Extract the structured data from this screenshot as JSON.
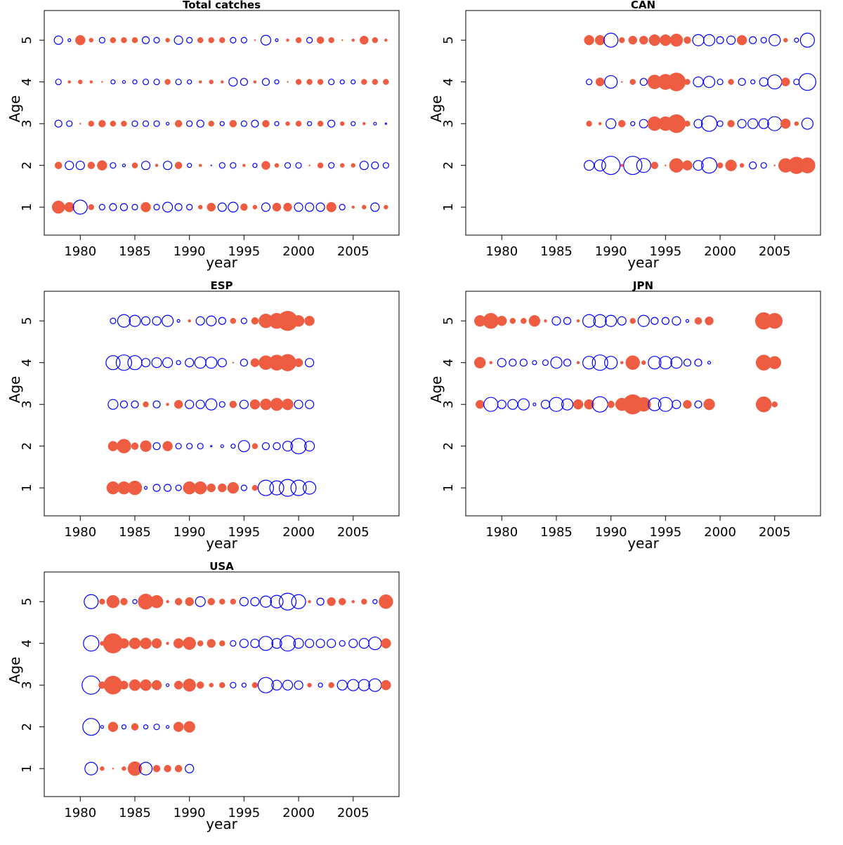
{
  "chart_data": [
    {
      "type": "bubble",
      "title": "Total catches",
      "x_label": "year",
      "y_label": "Age",
      "xlim": [
        1976.7,
        2009.2
      ],
      "ylim": [
        0.33,
        5.71
      ],
      "xticks": [
        1980,
        1985,
        1990,
        1995,
        2000,
        2005
      ],
      "yticks": [
        1,
        2,
        3,
        4,
        5
      ],
      "positive_color": "#ee5c42",
      "negative_color": "#0000ff",
      "x": [
        1978,
        1979,
        1980,
        1981,
        1982,
        1983,
        1984,
        1985,
        1986,
        1987,
        1988,
        1989,
        1990,
        1991,
        1992,
        1993,
        1994,
        1995,
        1996,
        1997,
        1998,
        1999,
        2000,
        2001,
        2002,
        2003,
        2004,
        2005,
        2006,
        2007,
        2008
      ],
      "y": [
        1,
        2,
        3,
        4,
        5
      ],
      "values": [
        [
          1.8,
          1.4,
          -2.0,
          0.8,
          -0.8,
          -1.0,
          -1.0,
          -0.8,
          1.4,
          -0.8,
          -1.4,
          -1.0,
          -0.8,
          0.6,
          1.2,
          -1.2,
          -1.4,
          1.0,
          0.6,
          -1.2,
          1.2,
          1.2,
          -1.2,
          -1.2,
          -1.2,
          1.4,
          -0.8,
          0.4,
          0.6,
          -1.2,
          0.6
        ],
        [
          1.0,
          -1.2,
          -1.2,
          1.0,
          1.4,
          -0.8,
          -0.4,
          0.8,
          -1.2,
          0.4,
          -1.2,
          1.0,
          -0.6,
          0.4,
          -0.1,
          -0.8,
          -0.8,
          0.4,
          -0.6,
          1.2,
          0.6,
          -0.8,
          -0.8,
          0.2,
          0.8,
          -0.8,
          0.6,
          0.6,
          -1.2,
          -1.0,
          -0.8
        ],
        [
          -1.0,
          -0.8,
          0.2,
          0.8,
          1.0,
          0.8,
          0.8,
          -0.8,
          -0.8,
          -0.8,
          -0.4,
          1.0,
          -0.8,
          -1.0,
          0.8,
          -0.6,
          1.0,
          -0.8,
          -1.0,
          1.0,
          -0.6,
          0.6,
          0.8,
          -0.6,
          0.8,
          -1.0,
          0.6,
          -0.6,
          0.4,
          -0.4,
          -0.2
        ],
        [
          -0.8,
          0.4,
          0.6,
          0.4,
          0.2,
          -0.6,
          -0.4,
          -0.6,
          -0.8,
          -0.8,
          0.8,
          -0.8,
          -0.6,
          0.4,
          0.6,
          0.4,
          -1.2,
          -1.0,
          0.4,
          -1.0,
          -0.6,
          0.2,
          0.8,
          0.8,
          0.8,
          -0.8,
          -0.6,
          -0.6,
          0.8,
          0.8,
          0.8
        ],
        [
          -1.2,
          -0.4,
          1.4,
          0.6,
          -0.8,
          0.8,
          0.8,
          0.8,
          -1.0,
          -0.8,
          0.6,
          -1.2,
          -0.8,
          0.8,
          0.8,
          0.8,
          -0.8,
          -0.8,
          0.2,
          -1.4,
          -0.4,
          0.4,
          0.8,
          -0.8,
          1.0,
          0.8,
          0.2,
          0.4,
          1.2,
          0.8,
          0.4
        ]
      ]
    },
    {
      "type": "bubble",
      "title": "CAN",
      "x_label": "year",
      "y_label": "Age",
      "xlim": [
        1976.7,
        2009.2
      ],
      "ylim": [
        0.33,
        5.71
      ],
      "xticks": [
        1980,
        1985,
        1990,
        1995,
        2000,
        2005
      ],
      "yticks": [
        1,
        2,
        3,
        4,
        5
      ],
      "positive_color": "#ee5c42",
      "negative_color": "#0000ff",
      "x": [
        1988,
        1989,
        1990,
        1991,
        1992,
        1993,
        1994,
        1995,
        1996,
        1997,
        1998,
        1999,
        2000,
        2001,
        2002,
        2003,
        2004,
        2005,
        2006,
        2007,
        2008
      ],
      "y": [
        2,
        3,
        4,
        5
      ],
      "values": [
        [
          -1.4,
          -1.6,
          -2.6,
          0.4,
          -2.6,
          -2.0,
          1.0,
          0.2,
          2.0,
          1.4,
          -1.4,
          -2.2,
          0.8,
          1.6,
          0.6,
          -1.0,
          -0.8,
          0.2,
          2.0,
          2.4,
          2.2
        ],
        [
          0.8,
          0.4,
          -1.4,
          1.0,
          -0.6,
          -1.2,
          2.0,
          2.0,
          2.6,
          0.8,
          -1.2,
          -2.2,
          -0.8,
          1.0,
          -1.2,
          -1.4,
          -1.4,
          -2.0,
          1.4,
          0.6,
          -1.6
        ],
        [
          -0.8,
          1.2,
          -1.8,
          0.2,
          0.8,
          -1.0,
          2.0,
          2.2,
          2.6,
          0.8,
          -1.4,
          -1.6,
          -0.8,
          0.8,
          -1.0,
          -0.6,
          -1.2,
          -2.0,
          1.2,
          -0.8,
          -2.4
        ],
        [
          1.4,
          1.4,
          -2.0,
          0.8,
          1.2,
          1.2,
          1.6,
          1.6,
          1.8,
          1.0,
          -1.6,
          -1.6,
          -1.0,
          -1.2,
          1.4,
          -1.0,
          -0.8,
          -1.6,
          0.6,
          -0.6,
          -2.0
        ]
      ]
    },
    {
      "type": "bubble",
      "title": "ESP",
      "x_label": "year",
      "y_label": "Age",
      "xlim": [
        1976.7,
        2009.2
      ],
      "ylim": [
        0.33,
        5.71
      ],
      "xticks": [
        1980,
        1985,
        1990,
        1995,
        2000,
        2005
      ],
      "yticks": [
        1,
        2,
        3,
        4,
        5
      ],
      "positive_color": "#ee5c42",
      "negative_color": "#0000ff",
      "x": [
        1983,
        1984,
        1985,
        1986,
        1987,
        1988,
        1989,
        1990,
        1991,
        1992,
        1993,
        1994,
        1995,
        1996,
        1997,
        1998,
        1999,
        2000,
        2001
      ],
      "y": [
        1,
        2,
        3,
        4,
        5
      ],
      "values": [
        [
          1.8,
          1.8,
          2.0,
          -0.4,
          -1.0,
          -1.0,
          -0.8,
          1.8,
          1.8,
          1.2,
          1.2,
          1.6,
          -0.8,
          0.8,
          -2.2,
          -2.0,
          -2.4,
          -2.2,
          -1.8
        ],
        [
          1.4,
          2.0,
          1.0,
          1.6,
          -1.0,
          1.4,
          -0.8,
          -0.8,
          -0.8,
          -0.2,
          -0.4,
          -0.6,
          -1.6,
          0.8,
          -1.0,
          -1.0,
          -1.4,
          -2.2,
          -1.4
        ],
        [
          -1.4,
          -1.0,
          -1.0,
          0.8,
          -1.0,
          0.4,
          1.2,
          -1.2,
          -1.2,
          -1.6,
          -0.8,
          1.0,
          -1.2,
          1.4,
          1.6,
          1.8,
          1.6,
          -1.2,
          -1.2
        ],
        [
          -2.0,
          -2.2,
          -2.0,
          -1.2,
          -1.4,
          -1.4,
          -0.6,
          -1.2,
          -1.6,
          -1.6,
          -1.2,
          0.2,
          -1.0,
          1.2,
          2.0,
          2.2,
          2.4,
          1.2,
          -1.2
        ],
        [
          -0.8,
          -1.8,
          -1.6,
          -1.2,
          -1.2,
          -1.6,
          -0.4,
          0.4,
          -1.2,
          -1.4,
          -1.0,
          0.8,
          -0.8,
          1.0,
          2.0,
          2.2,
          2.8,
          1.6,
          1.4
        ]
      ]
    },
    {
      "type": "bubble",
      "title": "JPN",
      "x_label": "year",
      "y_label": "Age",
      "xlim": [
        1976.7,
        2009.2
      ],
      "ylim": [
        0.33,
        5.71
      ],
      "xticks": [
        1980,
        1985,
        1990,
        1995,
        2000,
        2005
      ],
      "yticks": [
        1,
        2,
        3,
        4,
        5
      ],
      "positive_color": "#ee5c42",
      "negative_color": "#0000ff",
      "x": [
        1978,
        1979,
        1980,
        1981,
        1982,
        1983,
        1984,
        1985,
        1986,
        1987,
        1988,
        1989,
        1990,
        1991,
        1992,
        1993,
        1994,
        1995,
        1996,
        1997,
        1998,
        1999,
        2004,
        2005
      ],
      "y": [
        3,
        4,
        5
      ],
      "values": [
        [
          1.2,
          -2.0,
          -1.2,
          -1.4,
          -1.6,
          -0.4,
          -1.2,
          -2.0,
          -1.6,
          1.4,
          1.4,
          -2.2,
          1.0,
          1.8,
          2.8,
          2.0,
          -1.8,
          -2.0,
          -1.2,
          1.2,
          -1.0,
          1.6,
          2.2,
          0.8
        ],
        [
          1.6,
          0.4,
          -1.2,
          -1.0,
          -1.0,
          -0.6,
          -0.8,
          -1.6,
          -1.0,
          0.4,
          -1.8,
          -2.2,
          -1.8,
          0.4,
          2.0,
          0.6,
          -1.8,
          -1.8,
          -1.6,
          -1.0,
          -1.0,
          -0.4,
          2.2,
          1.8
        ],
        [
          1.6,
          2.2,
          1.4,
          0.8,
          0.8,
          1.6,
          0.4,
          -1.2,
          -1.0,
          0.4,
          -1.8,
          -1.8,
          -1.6,
          -1.2,
          0.8,
          -1.6,
          -1.0,
          -1.0,
          -1.2,
          -0.4,
          1.0,
          1.2,
          2.4,
          2.2
        ]
      ]
    },
    {
      "type": "bubble",
      "title": "USA",
      "x_label": "year",
      "y_label": "Age",
      "xlim": [
        1976.7,
        2009.2
      ],
      "ylim": [
        0.33,
        5.71
      ],
      "xticks": [
        1980,
        1985,
        1990,
        1995,
        2000,
        2005
      ],
      "yticks": [
        1,
        2,
        3,
        4,
        5
      ],
      "positive_color": "#ee5c42",
      "negative_color": "#0000ff",
      "x": [
        1981,
        1982,
        1983,
        1984,
        1985,
        1986,
        1987,
        1988,
        1989,
        1990,
        1991,
        1992,
        1993,
        1994,
        1995,
        1996,
        1997,
        1998,
        1999,
        2000,
        2001,
        2002,
        2003,
        2004,
        2005,
        2006,
        2007,
        2008
      ],
      "y": [
        1,
        2,
        3,
        4,
        5
      ],
      "values": [
        [
          -1.8,
          0.6,
          0.2,
          0.6,
          2.0,
          -1.8,
          1.0,
          1.0,
          1.0,
          -1.2,
          null,
          null,
          null,
          null,
          null,
          null,
          null,
          null,
          null,
          null,
          null,
          null,
          null,
          null,
          null,
          null,
          null,
          null
        ],
        [
          -2.4,
          -0.4,
          1.4,
          -0.6,
          1.0,
          -0.6,
          -0.8,
          -0.4,
          1.4,
          1.6,
          null,
          null,
          null,
          null,
          null,
          null,
          null,
          null,
          null,
          null,
          null,
          null,
          null,
          null,
          null,
          null,
          null,
          null
        ],
        [
          -2.6,
          1.0,
          2.6,
          1.2,
          1.6,
          1.6,
          1.4,
          -0.4,
          1.2,
          1.8,
          1.0,
          0.6,
          0.8,
          -0.8,
          -0.6,
          0.8,
          -2.2,
          -1.4,
          -1.4,
          -1.2,
          0.6,
          -0.6,
          0.8,
          -1.4,
          -1.6,
          -1.6,
          -1.8,
          1.4
        ],
        [
          -2.2,
          0.6,
          2.8,
          1.4,
          1.6,
          1.6,
          1.4,
          0.4,
          1.4,
          1.8,
          0.8,
          1.2,
          0.8,
          -0.8,
          -1.2,
          -1.2,
          -2.0,
          -1.4,
          -2.2,
          -1.4,
          -1.2,
          -1.2,
          -1.2,
          -0.8,
          -1.2,
          -1.4,
          -1.8,
          1.4
        ],
        [
          -2.0,
          0.8,
          1.8,
          1.0,
          -0.6,
          2.2,
          1.8,
          0.4,
          1.0,
          1.2,
          -1.4,
          1.0,
          0.8,
          0.8,
          -1.2,
          -1.2,
          -1.6,
          -1.8,
          -2.4,
          -2.0,
          0.4,
          -1.0,
          1.2,
          1.0,
          0.4,
          0.8,
          -0.6,
          2.0
        ]
      ]
    }
  ]
}
